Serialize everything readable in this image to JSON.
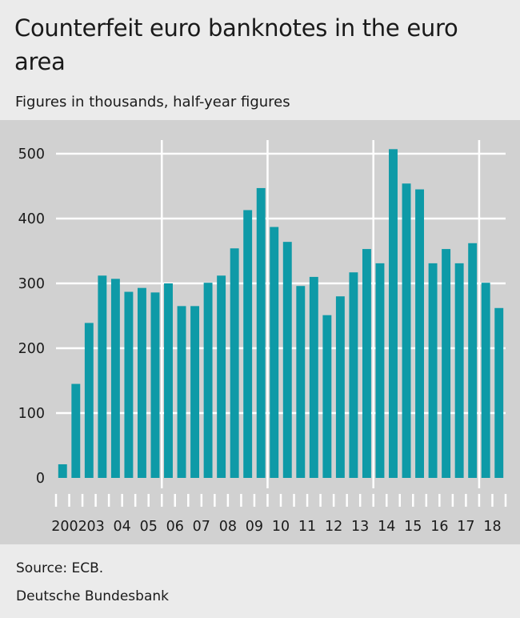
{
  "title": "Counterfeit euro banknotes in the euro area",
  "subtitle": "Figures in thousands, half-year figures",
  "source": "Source: ECB.",
  "publisher": "Deutsche Bundesbank",
  "colors": {
    "bar": "#0e9aa7",
    "plot_background": "#d1d1d1",
    "page_background": "#ebebeb",
    "grid": "#ffffff"
  },
  "chart_data": {
    "type": "bar",
    "title": "Counterfeit euro banknotes in the euro area",
    "subtitle": "Figures in thousands, half-year figures",
    "ylim": [
      0,
      520
    ],
    "yticks": [
      0,
      100,
      200,
      300,
      400,
      500
    ],
    "grid": true,
    "year_labels": [
      "2002",
      "03",
      "04",
      "05",
      "06",
      "07",
      "08",
      "09",
      "10",
      "11",
      "12",
      "13",
      "14",
      "15",
      "16",
      "17",
      "18"
    ],
    "emphasized_year_separators": [
      "06",
      "10",
      "14",
      "18"
    ],
    "categories": [
      "2002 H1",
      "2002 H2",
      "2003 H1",
      "2003 H2",
      "2004 H1",
      "2004 H2",
      "2005 H1",
      "2005 H2",
      "2006 H1",
      "2006 H2",
      "2007 H1",
      "2007 H2",
      "2008 H1",
      "2008 H2",
      "2009 H1",
      "2009 H2",
      "2010 H1",
      "2010 H2",
      "2011 H1",
      "2011 H2",
      "2012 H1",
      "2012 H2",
      "2013 H1",
      "2013 H2",
      "2014 H1",
      "2014 H2",
      "2015 H1",
      "2015 H2",
      "2016 H1",
      "2016 H2",
      "2017 H1",
      "2017 H2",
      "2018 H1",
      "2018 H2"
    ],
    "values": [
      21,
      145,
      239,
      312,
      307,
      287,
      293,
      286,
      300,
      265,
      265,
      301,
      312,
      354,
      413,
      447,
      387,
      364,
      296,
      310,
      251,
      280,
      317,
      353,
      331,
      507,
      454,
      445,
      331,
      353,
      331,
      362,
      301,
      262
    ]
  }
}
